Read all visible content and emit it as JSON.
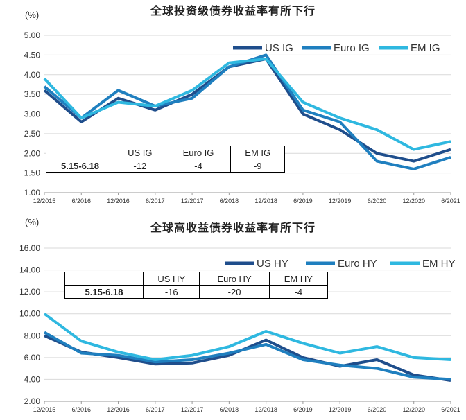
{
  "chart_data": [
    {
      "type": "line",
      "title": "全球投资级债券收益率有所下行",
      "unit": "(%)",
      "ylim": [
        1.0,
        5.0
      ],
      "yticks": [
        "1.00",
        "1.50",
        "2.00",
        "2.50",
        "3.00",
        "3.50",
        "4.00",
        "4.50",
        "5.00"
      ],
      "xticks": [
        "12/2015",
        "6/2016",
        "12/2016",
        "6/2017",
        "12/2017",
        "6/2018",
        "12/2018",
        "6/2019",
        "12/2019",
        "6/2020",
        "12/2020",
        "6/2021"
      ],
      "grid": true,
      "legend": "top-right",
      "table": {
        "headers": [
          "",
          "US IG",
          "Euro IG",
          "EM IG"
        ],
        "row": [
          "5.15-6.18",
          "-12",
          "-4",
          "-9"
        ]
      },
      "x_index": [
        0,
        1,
        2,
        3,
        4,
        5,
        6,
        7,
        8,
        9,
        10,
        11
      ],
      "series": [
        {
          "name": "US IG",
          "color": "#1f4e8c",
          "values": [
            3.6,
            2.8,
            3.4,
            3.1,
            3.5,
            4.2,
            4.4,
            3.0,
            2.6,
            2.0,
            1.8,
            2.1
          ]
        },
        {
          "name": "Euro IG",
          "color": "#1f7fbf",
          "values": [
            3.7,
            2.9,
            3.6,
            3.2,
            3.4,
            4.2,
            4.5,
            3.1,
            2.8,
            1.8,
            1.6,
            1.9
          ]
        },
        {
          "name": "EM IG",
          "color": "#2fb8e0",
          "values": [
            3.9,
            2.9,
            3.3,
            3.2,
            3.6,
            4.3,
            4.4,
            3.3,
            2.9,
            2.6,
            2.1,
            2.3
          ]
        }
      ]
    },
    {
      "type": "line",
      "title": "全球高收益债券收益率有所下行",
      "unit": "(%)",
      "ylim": [
        2.0,
        16.0
      ],
      "yticks": [
        "2.00",
        "4.00",
        "6.00",
        "8.00",
        "10.00",
        "12.00",
        "14.00",
        "16.00"
      ],
      "xticks": [
        "12/2015",
        "6/2016",
        "12/2016",
        "6/2017",
        "12/2017",
        "6/2018",
        "12/2018",
        "6/2019",
        "12/2019",
        "6/2020",
        "12/2020",
        "6/2021"
      ],
      "grid": true,
      "legend": "top-right",
      "table": {
        "headers": [
          "",
          "US HY",
          "Euro HY",
          "EM HY"
        ],
        "row": [
          "5.15-6.18",
          "-16",
          "-20",
          "-4"
        ]
      },
      "x_index": [
        0,
        1,
        2,
        3,
        4,
        5,
        6,
        7,
        8,
        9,
        10,
        11
      ],
      "series": [
        {
          "name": "US HY",
          "color": "#1f4e8c",
          "values": [
            8.0,
            6.5,
            6.0,
            5.4,
            5.5,
            6.2,
            7.6,
            6.0,
            5.2,
            5.8,
            4.4,
            3.9
          ]
        },
        {
          "name": "Euro HY",
          "color": "#1f7fbf",
          "values": [
            8.3,
            6.4,
            6.2,
            5.6,
            5.8,
            6.4,
            7.2,
            5.8,
            5.3,
            5.0,
            4.2,
            4.0
          ]
        },
        {
          "name": "EM HY",
          "color": "#2fb8e0",
          "values": [
            10.0,
            7.5,
            6.5,
            5.8,
            6.2,
            7.0,
            8.4,
            7.3,
            6.4,
            7.0,
            6.0,
            5.8
          ]
        }
      ]
    }
  ]
}
